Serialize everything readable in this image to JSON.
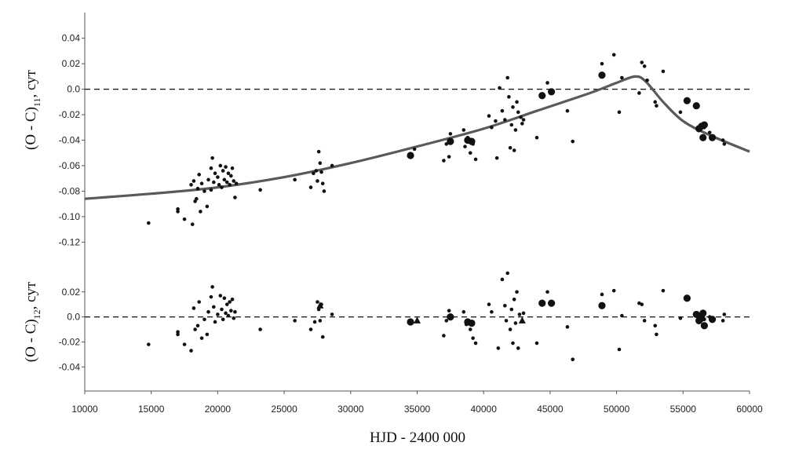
{
  "chart_data": [
    {
      "type": "scatter",
      "panel": "top",
      "ylabel": "(O - C)",
      "ylabel_sub": "11",
      "ylabel_unit": ", сут",
      "ylim": [
        -0.13,
        0.05
      ],
      "yticks": [
        "0.04",
        "0.02",
        "0.0",
        "-0.02",
        "-0.04",
        "-0.06",
        "-0.08",
        "-0.10",
        "-0.12"
      ],
      "ytick_values": [
        0.04,
        0.02,
        0.0,
        -0.02,
        -0.04,
        -0.06,
        -0.08,
        -0.1,
        -0.12
      ],
      "reference_line": 0.0,
      "fit_curve": {
        "x": [
          10000,
          15000,
          20000,
          25000,
          30000,
          35000,
          40000,
          44000,
          48000,
          50000,
          51400,
          52200,
          53500,
          55000,
          57000,
          60000
        ],
        "y": [
          -0.086,
          -0.082,
          -0.077,
          -0.069,
          -0.058,
          -0.045,
          -0.031,
          -0.017,
          -0.003,
          0.005,
          0.01,
          0.006,
          -0.01,
          -0.025,
          -0.036,
          -0.049
        ]
      },
      "series": [
        {
          "marker": "small-dot",
          "x": [
            14800,
            17000,
            17000,
            17500,
            18000,
            18100,
            18200,
            18300,
            18400,
            18500,
            18600,
            18700,
            18800,
            19000,
            19200,
            19300,
            19500,
            19500,
            19600,
            19700,
            19800,
            20000,
            20100,
            20200,
            20300,
            20400,
            20500,
            20600,
            20700,
            20800,
            20900,
            21000,
            21100,
            21200,
            21300,
            21400,
            23200,
            25800,
            27000,
            27200,
            27400,
            27500,
            27600,
            27700,
            27800,
            27900,
            28000,
            28600,
            34800,
            37000,
            37200,
            37400,
            37500,
            38500,
            38600,
            38800,
            39000,
            39200,
            39400,
            40400,
            40600,
            40900,
            41000,
            41200,
            41400,
            41600,
            41800,
            41900,
            42000,
            42100,
            42200,
            42300,
            42400,
            42500,
            42600,
            42800,
            42900,
            43000,
            44000,
            44800,
            46300,
            46700,
            48900,
            49800,
            50200,
            50400,
            51700,
            51900,
            52100,
            52300,
            52900,
            53000,
            53500,
            54800,
            56600,
            57000,
            58000,
            58100
          ],
          "y": [
            -0.105,
            -0.094,
            -0.096,
            -0.102,
            -0.075,
            -0.106,
            -0.072,
            -0.088,
            -0.086,
            -0.078,
            -0.067,
            -0.096,
            -0.074,
            -0.08,
            -0.092,
            -0.071,
            -0.062,
            -0.079,
            -0.054,
            -0.073,
            -0.066,
            -0.069,
            -0.075,
            -0.06,
            -0.077,
            -0.064,
            -0.071,
            -0.061,
            -0.073,
            -0.066,
            -0.075,
            -0.068,
            -0.062,
            -0.072,
            -0.085,
            -0.074,
            -0.079,
            -0.071,
            -0.077,
            -0.066,
            -0.064,
            -0.072,
            -0.049,
            -0.058,
            -0.065,
            -0.074,
            -0.08,
            -0.06,
            -0.047,
            -0.056,
            -0.043,
            -0.053,
            -0.035,
            -0.032,
            -0.045,
            -0.038,
            -0.05,
            -0.043,
            -0.055,
            -0.021,
            -0.03,
            -0.025,
            -0.054,
            0.001,
            -0.017,
            -0.024,
            0.009,
            -0.006,
            -0.046,
            -0.028,
            -0.014,
            -0.048,
            -0.032,
            -0.01,
            -0.018,
            -0.022,
            -0.027,
            -0.024,
            -0.038,
            0.005,
            -0.017,
            -0.041,
            0.02,
            0.027,
            -0.018,
            0.009,
            -0.003,
            0.021,
            0.018,
            0.007,
            -0.01,
            -0.013,
            0.014,
            -0.018,
            -0.03,
            -0.034,
            -0.04,
            -0.043
          ]
        },
        {
          "marker": "large-dot",
          "x": [
            34500,
            37500,
            38800,
            39100,
            44400,
            45100,
            48900,
            55300,
            56000,
            56200,
            56400,
            56500,
            56600,
            57200
          ],
          "y": [
            -0.052,
            -0.041,
            -0.04,
            -0.041,
            -0.005,
            -0.002,
            0.011,
            -0.009,
            -0.013,
            -0.031,
            -0.029,
            -0.038,
            -0.028,
            -0.038
          ]
        }
      ]
    },
    {
      "type": "scatter",
      "panel": "bottom",
      "xlabel": "HJD - 2400 000",
      "ylabel": "(O - C)",
      "ylabel_sub": "12",
      "ylabel_unit": ", сут",
      "xlim": [
        10000,
        60000
      ],
      "xticks": [
        "10000",
        "15000",
        "20000",
        "25000",
        "30000",
        "35000",
        "40000",
        "45000",
        "50000",
        "55000",
        "60000"
      ],
      "xtick_values": [
        10000,
        15000,
        20000,
        25000,
        30000,
        35000,
        40000,
        45000,
        50000,
        55000,
        60000
      ],
      "ylim": [
        -0.05,
        0.045
      ],
      "yticks": [
        "0.02",
        "0.0",
        "-0.02",
        "-0.04"
      ],
      "ytick_values": [
        0.02,
        0.0,
        -0.02,
        -0.04
      ],
      "reference_line": 0.0,
      "series": [
        {
          "marker": "small-dot",
          "x": [
            14800,
            17000,
            17000,
            17500,
            18000,
            18200,
            18300,
            18500,
            18600,
            18800,
            19000,
            19200,
            19300,
            19500,
            19600,
            19700,
            19800,
            20000,
            20200,
            20300,
            20400,
            20500,
            20600,
            20700,
            20800,
            20900,
            21000,
            21100,
            21200,
            21300,
            23200,
            25800,
            27000,
            27300,
            27500,
            27600,
            27700,
            27800,
            27900,
            28600,
            37000,
            37200,
            37400,
            38500,
            38700,
            39000,
            39200,
            39400,
            40400,
            40600,
            41100,
            41400,
            41600,
            41700,
            41800,
            42000,
            42100,
            42200,
            42300,
            42400,
            42500,
            42600,
            42700,
            43000,
            44000,
            44800,
            46300,
            46700,
            48900,
            49800,
            50200,
            50400,
            51700,
            51900,
            52100,
            52900,
            53000,
            53500,
            54800,
            56600,
            57000,
            58000,
            58100
          ],
          "y": [
            -0.022,
            -0.012,
            -0.014,
            -0.022,
            -0.027,
            0.007,
            -0.01,
            -0.007,
            0.012,
            -0.017,
            -0.002,
            -0.014,
            0.004,
            0.016,
            0.024,
            0.008,
            -0.004,
            0.002,
            0.017,
            0.006,
            -0.002,
            0.015,
            0.003,
            0.01,
            0.001,
            0.012,
            0.005,
            0.014,
            -0.001,
            0.004,
            -0.01,
            -0.003,
            -0.01,
            -0.004,
            0.012,
            0.006,
            -0.003,
            0.01,
            -0.016,
            0.002,
            -0.015,
            -0.003,
            0.005,
            0.004,
            -0.006,
            -0.01,
            -0.017,
            -0.021,
            0.01,
            0.004,
            -0.025,
            0.03,
            0.009,
            -0.003,
            0.035,
            -0.01,
            0.006,
            -0.021,
            0.014,
            -0.005,
            0.02,
            -0.025,
            0.002,
            0.003,
            -0.021,
            0.02,
            -0.008,
            -0.034,
            0.018,
            0.021,
            -0.026,
            0.001,
            0.011,
            0.01,
            -0.003,
            -0.007,
            -0.014,
            0.021,
            -0.001,
            -0.002,
            0.0,
            -0.003,
            0.002
          ]
        },
        {
          "marker": "large-dot",
          "x": [
            34500,
            37500,
            38800,
            39100,
            44400,
            45100,
            48900,
            55300,
            56000,
            56200,
            56400,
            56500,
            56600,
            57200
          ],
          "y": [
            -0.004,
            0.0,
            -0.004,
            -0.005,
            0.011,
            0.011,
            0.009,
            0.015,
            0.002,
            -0.003,
            -0.001,
            0.003,
            -0.007,
            -0.002
          ]
        },
        {
          "marker": "triangle",
          "x": [
            35000,
            42900,
            27700
          ],
          "y": [
            -0.003,
            -0.003,
            0.009
          ]
        }
      ]
    }
  ]
}
